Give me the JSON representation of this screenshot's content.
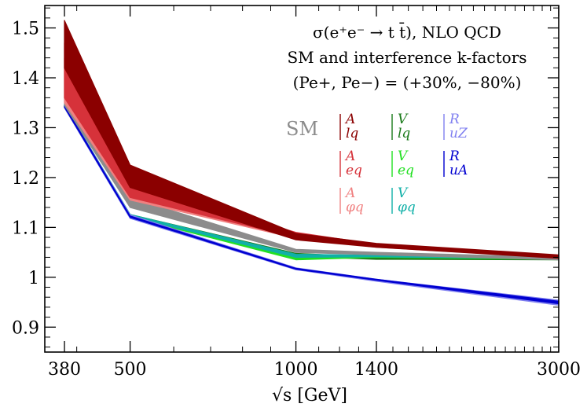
{
  "chart_data": {
    "type": "area",
    "title": "",
    "annotation": [
      "σ(e⁺e⁻ → t t̄), NLO QCD",
      "SM and interference k-factors",
      "(Pe+, Pe−) = (+30%, −80%)"
    ],
    "xlabel": "√s [GeV]",
    "ylabel": "",
    "x": [
      380,
      500,
      1000,
      1400,
      3000
    ],
    "x_tick_labels": [
      "380",
      "500",
      "1000",
      "1400",
      "3000"
    ],
    "xlim": [
      350,
      3000
    ],
    "ylim": [
      0.85,
      1.545
    ],
    "y_ticks": [
      0.9,
      1,
      1.1,
      1.2,
      1.3,
      1.4,
      1.5
    ],
    "y_tick_labels": [
      "0.9",
      "1",
      "1.1",
      "1.2",
      "1.3",
      "1.4",
      "1.5"
    ],
    "grid": false,
    "legend_position": "top-right",
    "series": [
      {
        "name": "SM",
        "label": "SM",
        "color": "#8c8c8c",
        "lower": [
          1.345,
          1.14,
          1.05,
          1.045,
          1.035
        ],
        "upper": [
          1.42,
          1.16,
          1.056,
          1.05,
          1.04
        ]
      },
      {
        "name": "A_lq",
        "label": "A",
        "sub": "lq",
        "color": "#8b0000",
        "lower": [
          1.42,
          1.18,
          1.075,
          1.06,
          1.038
        ],
        "upper": [
          1.515,
          1.225,
          1.088,
          1.068,
          1.045
        ]
      },
      {
        "name": "A_eq",
        "label": "A",
        "sub": "eq",
        "color": "#d6323a",
        "lower": [
          1.36,
          1.16,
          1.08,
          1.063,
          1.04
        ],
        "upper": [
          1.47,
          1.19,
          1.09,
          1.066,
          1.043
        ]
      },
      {
        "name": "A_φq",
        "label": "A",
        "sub": "φq",
        "color": "#f08080",
        "lower": [
          1.35,
          1.155,
          1.078,
          1.06,
          1.039
        ],
        "upper": [
          1.44,
          1.18,
          1.086,
          1.064,
          1.042
        ]
      },
      {
        "name": "V_lq",
        "label": "V",
        "sub": "lq",
        "color": "#1a7a1a",
        "lower": [
          1.34,
          1.12,
          1.042,
          1.036,
          1.035
        ],
        "upper": [
          1.345,
          1.126,
          1.048,
          1.04,
          1.038
        ]
      },
      {
        "name": "V_eq",
        "label": "V",
        "sub": "eq",
        "color": "#22e022",
        "lower": [
          1.341,
          1.121,
          1.035,
          1.04,
          1.036
        ],
        "upper": [
          1.346,
          1.125,
          1.042,
          1.045,
          1.04
        ]
      },
      {
        "name": "V_φq",
        "label": "V",
        "sub": "φq",
        "color": "#10b0a8",
        "lower": [
          1.342,
          1.122,
          1.04,
          1.041,
          1.037
        ],
        "upper": [
          1.346,
          1.126,
          1.046,
          1.044,
          1.04
        ]
      },
      {
        "name": "R_uZ",
        "label": "R",
        "sub": "uZ",
        "color": "#8080f0",
        "lower": [
          1.34,
          1.118,
          1.015,
          0.992,
          0.944
        ],
        "upper": [
          1.345,
          1.125,
          1.019,
          0.996,
          0.954
        ]
      },
      {
        "name": "R_uA",
        "label": "R",
        "sub": "uA",
        "color": "#0000d0",
        "lower": [
          1.341,
          1.12,
          1.016,
          0.994,
          0.947
        ],
        "upper": [
          1.345,
          1.123,
          1.018,
          0.996,
          0.952
        ]
      }
    ]
  }
}
